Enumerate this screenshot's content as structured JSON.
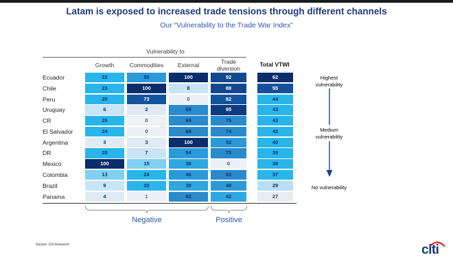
{
  "title": "Latam is exposed to increased trade tensions through different channels",
  "subtitle": "Our “Vulnerability to the Trade War Index”",
  "table": {
    "group_header": "Vulnerability to",
    "columns": [
      "Growth",
      "Commodities",
      "External",
      "Trade diversion"
    ],
    "total_header": "Total VTWI"
  },
  "chart_data": {
    "type": "heatmap",
    "title": "Latam is exposed to increased trade tensions through different channels",
    "subtitle": "Our “Vulnerability to the Trade War Index”",
    "columns": [
      "Growth",
      "Commodities",
      "External",
      "Trade diversion"
    ],
    "total_column": "Total VTWI",
    "rows": [
      "Ecuador",
      "Chile",
      "Peru",
      "Uruguay",
      "CR",
      "El Salvador",
      "Argentina",
      "DR",
      "Mexico",
      "Colombia",
      "Brazil",
      "Panama"
    ],
    "values": [
      [
        22,
        55,
        100,
        92
      ],
      [
        23,
        100,
        8,
        88
      ],
      [
        20,
        73,
        0,
        82
      ],
      [
        6,
        2,
        69,
        95
      ],
      [
        26,
        0,
        69,
        75
      ],
      [
        24,
        0,
        69,
        74
      ],
      [
        3,
        3,
        100,
        52
      ],
      [
        20,
        7,
        54,
        75
      ],
      [
        100,
        15,
        38,
        0
      ],
      [
        13,
        24,
        46,
        63
      ],
      [
        9,
        22,
        38,
        48
      ],
      [
        4,
        1,
        62,
        42
      ]
    ],
    "totals": [
      62,
      55,
      44,
      43,
      43,
      42,
      40,
      39,
      38,
      37,
      29,
      27
    ],
    "column_groups": {
      "negative_label": "Negative",
      "positive_label": "Positive"
    },
    "value_range": [
      0,
      100
    ]
  },
  "palette": {
    "navy": "#0a2d6b",
    "dark2": "#0e3a80",
    "dark3": "#13478f",
    "dark4": "#13549f",
    "mid1": "#2a8acb",
    "mid2": "#2b9ad7",
    "mid3": "#2fa7e1",
    "cyan": "#29b5ea",
    "light1": "#7fd0f2",
    "light2": "#c9e4f6",
    "light3": "#e0eaf3",
    "light4": "#edf0f4",
    "total_mid": "#134f9d",
    "total_light": "#b9def3",
    "total_faint": "#e9edf1",
    "text_dark": "#0d3474",
    "text_light": "#ffffff"
  },
  "legend": {
    "highest": {
      "label": "Highest vulnerability",
      "bg": "#0a2d6b",
      "fg": "#ffffff"
    },
    "medium": {
      "label": "Medium vulnerability",
      "bg": "#29b5ea",
      "fg": "#0d3474"
    },
    "none": {
      "label": "No vulnerability",
      "bg": "#edeff2",
      "fg": "#333333"
    },
    "arrow_color": "#1f3f85"
  },
  "footer": {
    "source": "Source: Citi Research",
    "logo_text": "citi",
    "logo_color": "#163a77",
    "logo_arc_color": "#d9261c"
  }
}
